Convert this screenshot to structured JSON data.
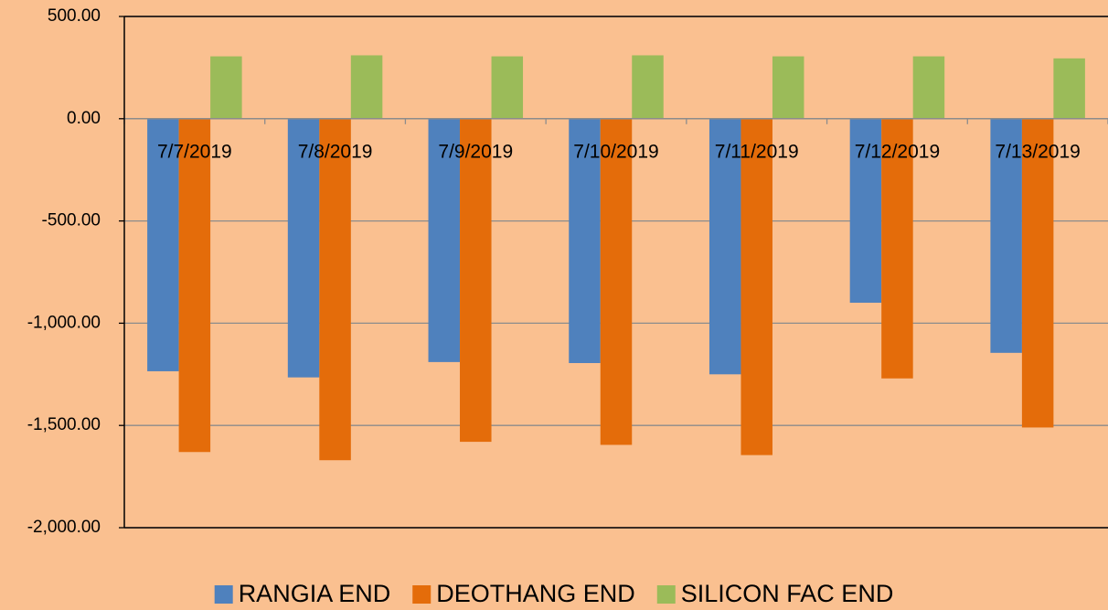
{
  "chart_data": {
    "type": "bar",
    "categories": [
      "7/7/2019",
      "7/8/2019",
      "7/9/2019",
      "7/10/2019",
      "7/11/2019",
      "7/12/2019",
      "7/13/2019"
    ],
    "series": [
      {
        "name": "RANGIA END",
        "color": "#4f81bd",
        "values": [
          -1235,
          -1265,
          -1190,
          -1195,
          -1250,
          -900,
          -1145
        ]
      },
      {
        "name": "DEOTHANG END",
        "color": "#e46c0a",
        "values": [
          -1630,
          -1670,
          -1580,
          -1595,
          -1645,
          -1270,
          -1510
        ]
      },
      {
        "name": "SILICON FAC END",
        "color": "#9bbb59",
        "values": [
          305,
          310,
          305,
          310,
          305,
          305,
          295
        ]
      }
    ],
    "ylim": [
      -2000,
      500
    ],
    "yticks": [
      {
        "value": -2000,
        "label": "-2,000.00"
      },
      {
        "value": -1500,
        "label": "-1,500.00"
      },
      {
        "value": -1000,
        "label": "-1,000.00"
      },
      {
        "value": -500,
        "label": "-500.00"
      },
      {
        "value": 0,
        "label": "0.00"
      },
      {
        "value": 500,
        "label": "500.00"
      }
    ],
    "grid": true,
    "legend": "bottom"
  }
}
